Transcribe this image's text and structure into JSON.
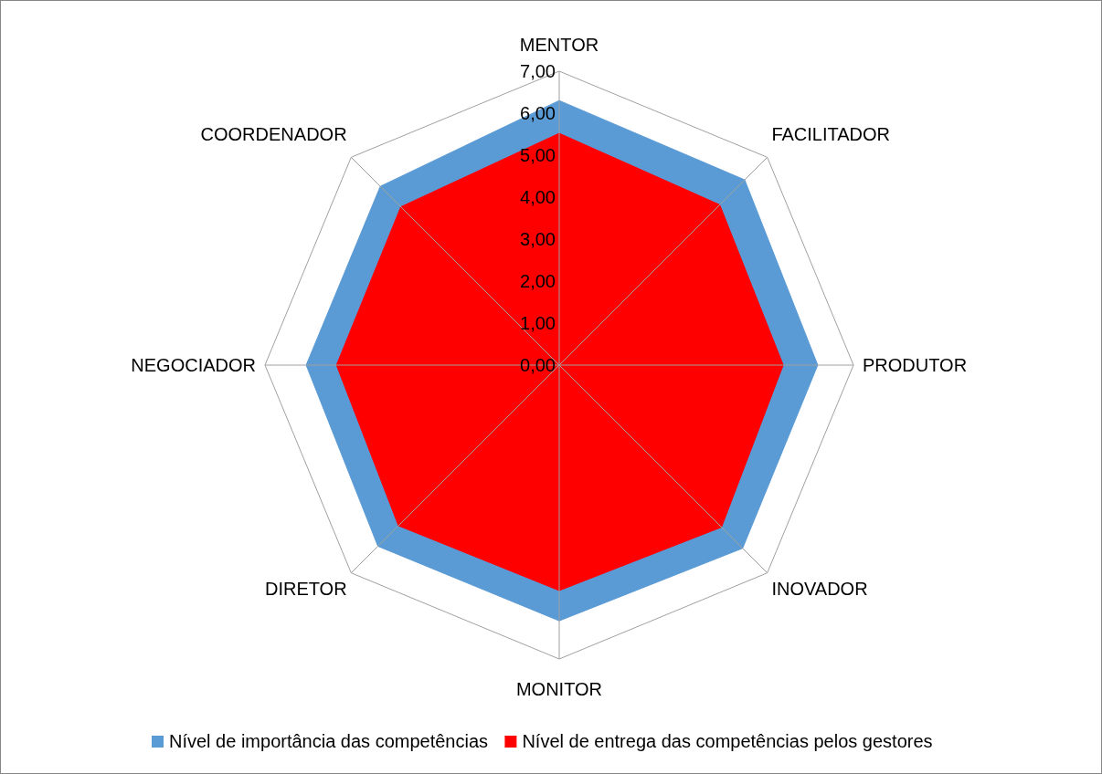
{
  "chart_data": {
    "type": "radar",
    "categories": [
      "MENTOR",
      "FACILITADOR",
      "PRODUTOR",
      "INOVADOR",
      "MONITOR",
      "DIRETOR",
      "NEGOCIADOR",
      "COORDENADOR"
    ],
    "series": [
      {
        "name": "Nível de importância das competências",
        "color": "#5b9bd5",
        "values": [
          6.3,
          6.24,
          6.15,
          6.17,
          6.09,
          6.1,
          6.02,
          6.02
        ]
      },
      {
        "name": "Nível de entrega das competências pelos gestores",
        "color": "#ff0000",
        "values": [
          5.52,
          5.4,
          5.33,
          5.46,
          5.37,
          5.41,
          5.3,
          5.33
        ]
      }
    ],
    "ylim": [
      0,
      7
    ],
    "yticks": [
      {
        "value": 0,
        "label": "0,00"
      },
      {
        "value": 1,
        "label": "1,00"
      },
      {
        "value": 2,
        "label": "2,00"
      },
      {
        "value": 3,
        "label": "3,00"
      },
      {
        "value": 4,
        "label": "4,00"
      },
      {
        "value": 5,
        "label": "5,00"
      },
      {
        "value": 6,
        "label": "6,00"
      },
      {
        "value": 7,
        "label": "7,00"
      }
    ],
    "grid": true,
    "legend": "bottom"
  }
}
